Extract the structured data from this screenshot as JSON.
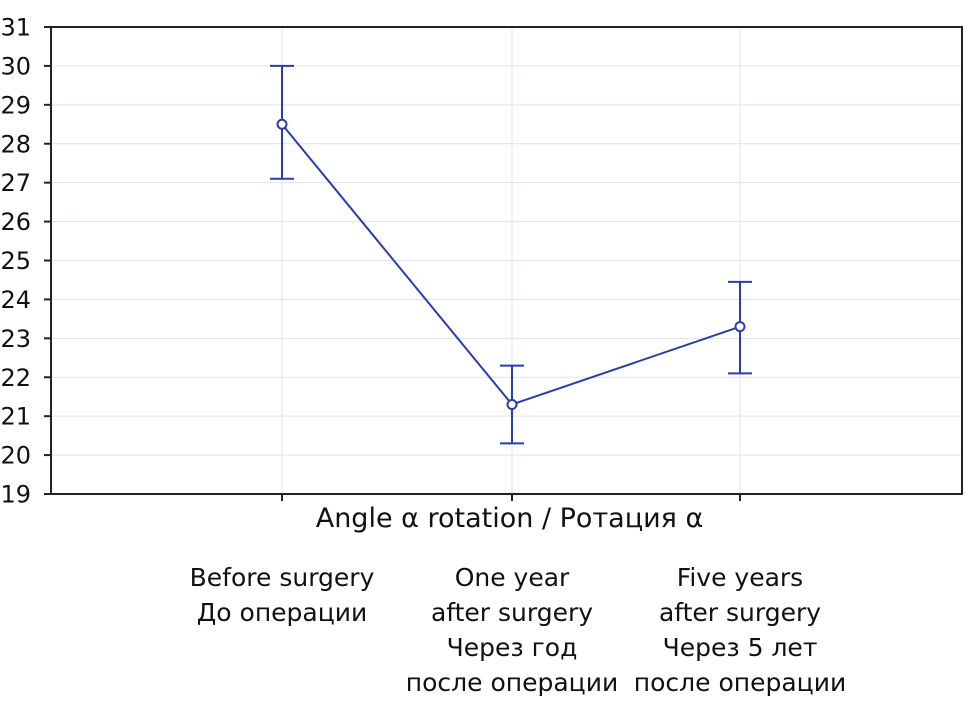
{
  "chart_data": {
    "type": "line",
    "title": "",
    "xlabel": "Angle α rotation / Ротация α",
    "ylabel": "",
    "ylim": [
      19,
      31
    ],
    "yticks": [
      19,
      20,
      21,
      22,
      23,
      24,
      25,
      26,
      27,
      28,
      29,
      30,
      31
    ],
    "grid": true,
    "categories": [
      [
        "Before surgery",
        "До операции"
      ],
      [
        "One year",
        "after surgery",
        "Через год",
        "после операции"
      ],
      [
        "Five years",
        "after surgery",
        "Через 5 лет",
        "после операции"
      ]
    ],
    "series": [
      {
        "values": [
          28.5,
          21.3,
          23.3
        ],
        "error_low": [
          27.1,
          20.3,
          22.1
        ],
        "error_high": [
          30.0,
          22.3,
          24.45
        ],
        "color": "#2b3ea8"
      }
    ]
  }
}
